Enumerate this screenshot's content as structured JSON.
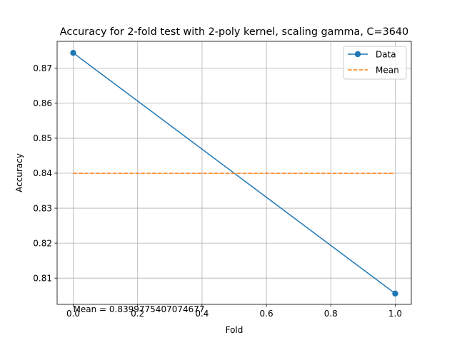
{
  "chart_data": {
    "type": "line",
    "title": "Accuracy for 2-fold test with 2-poly kernel, scaling gamma, C=3640",
    "xlabel": "Fold",
    "ylabel": "Accuracy",
    "xlim": [
      -0.05,
      1.05
    ],
    "ylim": [
      0.8025,
      0.8777
    ],
    "x_ticks": [
      0.0,
      0.2,
      0.4,
      0.6,
      0.8,
      1.0
    ],
    "x_tick_labels": [
      "0.0",
      "0.2",
      "0.4",
      "0.6",
      "0.8",
      "1.0"
    ],
    "y_ticks": [
      0.81,
      0.82,
      0.83,
      0.84,
      0.85,
      0.86,
      0.87
    ],
    "y_tick_labels": [
      "0.81",
      "0.82",
      "0.83",
      "0.84",
      "0.85",
      "0.86",
      "0.87"
    ],
    "grid": true,
    "legend_position": "top-right",
    "series": [
      {
        "name": "Data",
        "x": [
          0,
          1
        ],
        "y": [
          0.8744,
          0.8056
        ],
        "color": "#1f77b4",
        "style": "solid",
        "marker": "circle"
      },
      {
        "name": "Mean",
        "x": [
          0,
          1
        ],
        "y": [
          0.8399775407074677,
          0.8399775407074677
        ],
        "color": "#ff7f0e",
        "style": "dashed",
        "marker": "none"
      }
    ],
    "annotation": {
      "text": "Mean = 0.8399775407074677",
      "x": 0.0
    }
  }
}
